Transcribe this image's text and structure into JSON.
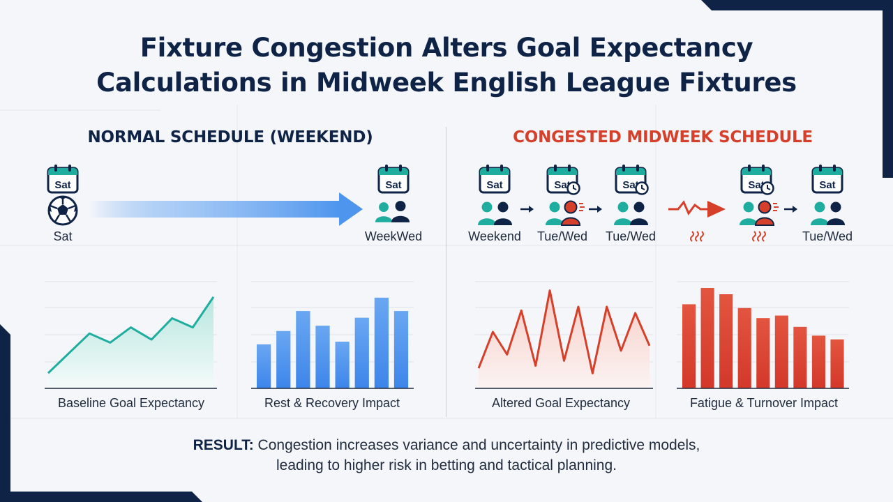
{
  "title": {
    "line1": "Fixture Congestion Alters Goal Expectancy",
    "line2": "Calculations in Midweek English League Fixtures"
  },
  "colors": {
    "navy": "#0f2347",
    "teal": "#1fada0",
    "red": "#d6402b",
    "blue": "#4e95ee"
  },
  "normal": {
    "heading": "NORMAL SCHEDULE (WEEKEND)",
    "calendar_text": "Sat",
    "start_label": "Sat",
    "end_label": "WeekWed",
    "icons": [
      "calendar-icon",
      "football-icon",
      "arrow-right-icon",
      "players-icon"
    ]
  },
  "congested": {
    "heading": "CONGESTED MIDWEEK SCHEDULE",
    "calendar_text": "Sat",
    "nodes": [
      {
        "label": "Weekend",
        "calendar_text": "Sat",
        "fatigued": false,
        "clock": false
      },
      {
        "label": "Tue/Wed",
        "calendar_text": "Sat",
        "fatigued": true,
        "clock": true
      },
      {
        "label": "Tue/Wed",
        "calendar_text": "Sat",
        "fatigued": false,
        "clock": true
      },
      {
        "label": "",
        "calendar_text": "",
        "fatigued": false,
        "clock": false
      },
      {
        "label": "",
        "calendar_text": "Sat",
        "fatigued": true,
        "clock": true
      },
      {
        "label": "Tue/Wed",
        "calendar_text": "Sat",
        "fatigued": false,
        "clock": false
      }
    ],
    "icons": [
      "calendar-icon",
      "clock-icon",
      "players-icon",
      "heat-waves-icon",
      "lightning-arrow-icon"
    ]
  },
  "chart_data": [
    {
      "type": "area",
      "xlabel": "Baseline Goal Expectancy",
      "values": [
        1.0,
        2.3,
        3.6,
        3.0,
        4.0,
        3.2,
        4.6,
        4.0,
        6.0
      ],
      "ylim": [
        0,
        7
      ]
    },
    {
      "type": "bar",
      "xlabel": "Rest & Recovery Impact",
      "values": [
        3.3,
        4.3,
        5.8,
        4.7,
        3.5,
        5.3,
        6.8,
        5.8
      ],
      "ylim": [
        0,
        8
      ]
    },
    {
      "type": "area",
      "xlabel": "Altered Goal Expectancy",
      "values": [
        1.6,
        4.5,
        2.7,
        6.2,
        1.8,
        7.8,
        2.2,
        6.5,
        1.2,
        6.5,
        3.0,
        6.0,
        3.4
      ],
      "ylim": [
        0,
        8.5
      ]
    },
    {
      "type": "bar",
      "xlabel": "Fatigue & Turnover Impact",
      "values": [
        6.7,
        8.0,
        7.5,
        6.4,
        5.6,
        5.8,
        4.9,
        4.2,
        3.9
      ],
      "ylim": [
        0,
        8.5
      ]
    }
  ],
  "result": {
    "prefix": "RESULT:",
    "line1": "Congestion increases variance and uncertainty in predictive models,",
    "line2": "leading to higher risk in betting and tactical planning."
  }
}
